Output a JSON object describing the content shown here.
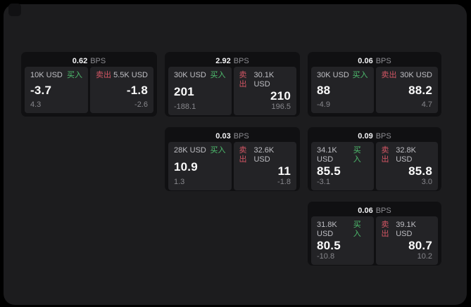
{
  "labels": {
    "bps_unit": "BPS",
    "buy": "买入",
    "sell": "卖出"
  },
  "colors": {
    "buy_green": "#4fbf6f",
    "sell_red": "#d35664",
    "window_bg": "#1c1c1e",
    "card_bg": "#101012",
    "panel_bg": "#232326"
  },
  "cards": [
    {
      "bps": "0.62",
      "buy": {
        "amount": "10K USD",
        "price": "-3.7",
        "delta": "4.3"
      },
      "sell": {
        "amount": "5.5K USD",
        "price": "-1.8",
        "delta": "-2.6"
      }
    },
    {
      "bps": "2.92",
      "buy": {
        "amount": "30K USD",
        "price": "201",
        "delta": "-188.1"
      },
      "sell": {
        "amount": "30.1K USD",
        "price": "210",
        "delta": "196.5"
      }
    },
    {
      "bps": "0.06",
      "buy": {
        "amount": "30K USD",
        "price": "88",
        "delta": "-4.9"
      },
      "sell": {
        "amount": "30K USD",
        "price": "88.2",
        "delta": "4.7"
      }
    },
    {
      "bps": "0.03",
      "buy": {
        "amount": "28K USD",
        "price": "10.9",
        "delta": "1.3"
      },
      "sell": {
        "amount": "32.6K USD",
        "price": "11",
        "delta": "-1.8"
      }
    },
    {
      "bps": "0.09",
      "buy": {
        "amount": "34.1K USD",
        "price": "85.5",
        "delta": "-3.1"
      },
      "sell": {
        "amount": "32.8K USD",
        "price": "85.8",
        "delta": "3.0"
      }
    },
    {
      "bps": "0.06",
      "buy": {
        "amount": "31.8K USD",
        "price": "80.5",
        "delta": "-10.8"
      },
      "sell": {
        "amount": "39.1K USD",
        "price": "80.7",
        "delta": "10.2"
      }
    }
  ]
}
